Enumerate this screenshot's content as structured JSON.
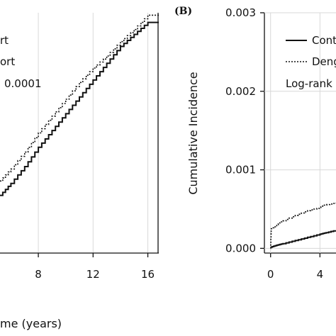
{
  "chart_data": [
    {
      "type": "line",
      "panel_label": "",
      "xlabel": "me (years)",
      "ylabel": "",
      "x_ticks": [
        "8",
        "12",
        "16"
      ],
      "x_tick_values": [
        8,
        12,
        16
      ],
      "xlim": [
        5.2,
        16.8
      ],
      "ylim": [
        0,
        1
      ],
      "legend": {
        "entries": [
          {
            "label": "rt",
            "style": "solid"
          },
          {
            "label": "ort",
            "style": "dotted"
          }
        ],
        "stat_text": "0.0001",
        "placement": "top-left"
      },
      "series": [
        {
          "label_ref": 0,
          "style": "solid",
          "x": [
            5.2,
            6,
            7,
            8,
            9,
            10,
            11,
            12,
            13,
            14,
            15,
            16,
            16.8
          ],
          "y": [
            0.24,
            0.29,
            0.36,
            0.44,
            0.51,
            0.58,
            0.65,
            0.72,
            0.79,
            0.86,
            0.91,
            0.96,
            0.96
          ]
        },
        {
          "label_ref": 1,
          "style": "dotted",
          "x": [
            5.2,
            6,
            7,
            8,
            9,
            10,
            11,
            12,
            13,
            14,
            15,
            16,
            16.8
          ],
          "y": [
            0.3,
            0.35,
            0.42,
            0.5,
            0.57,
            0.64,
            0.71,
            0.77,
            0.82,
            0.88,
            0.93,
            0.99,
            0.99
          ]
        }
      ]
    },
    {
      "type": "line",
      "panel_label": "(B)",
      "xlabel": "",
      "ylabel": "Cumulative Incidence",
      "y_ticks": [
        "0.000",
        "0.001",
        "0.002",
        "0.003"
      ],
      "y_tick_values": [
        0,
        0.001,
        0.002,
        0.003
      ],
      "x_ticks": [
        "0",
        "4"
      ],
      "x_tick_values": [
        0,
        4
      ],
      "xlim": [
        -0.5,
        5.3
      ],
      "ylim": [
        -6e-05,
        0.003
      ],
      "legend": {
        "entries": [
          {
            "label": "Contr",
            "style": "solid"
          },
          {
            "label": "Deng",
            "style": "dotted"
          }
        ],
        "stat_text": "Log-rank",
        "placement": "top-left"
      },
      "series": [
        {
          "label_ref": 0,
          "style": "solid",
          "x": [
            0,
            0.5,
            1,
            2,
            3,
            4,
            4.5,
            5.3
          ],
          "y": [
            1.5e-05,
            4e-05,
            6e-05,
            0.0001,
            0.00014,
            0.00018,
            0.0002,
            0.00023
          ]
        },
        {
          "label_ref": 1,
          "style": "dotted",
          "x": [
            0,
            0.05,
            0.5,
            1,
            2,
            3,
            4,
            4.3,
            5.3
          ],
          "y": [
            0,
            0.00025,
            0.0003,
            0.00035,
            0.00042,
            0.00048,
            0.00052,
            0.00055,
            0.00058
          ]
        }
      ]
    }
  ]
}
